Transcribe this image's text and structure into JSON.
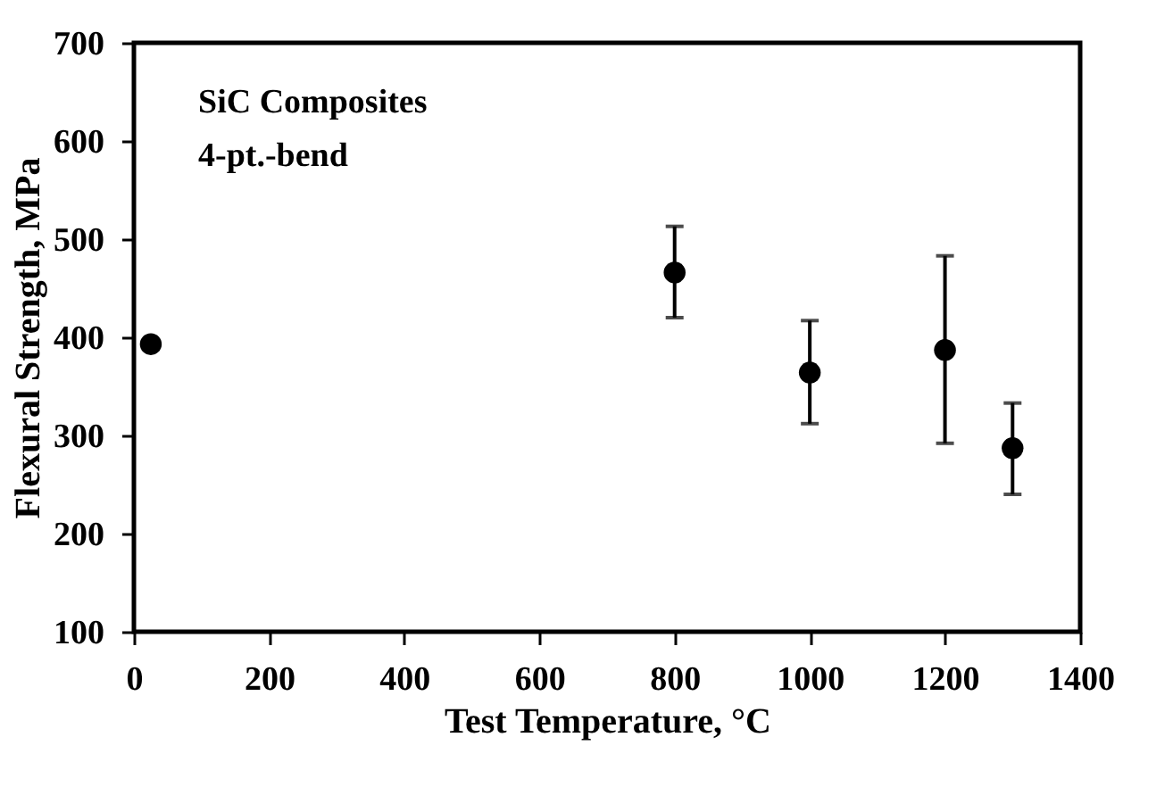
{
  "chart_data": {
    "type": "scatter",
    "xlabel": "Test Temperature, °C",
    "ylabel": "Flexural Strength, MPa",
    "annotations": [
      "SiC Composites",
      "4-pt.-bend"
    ],
    "x": [
      25,
      800,
      1000,
      1200,
      1300
    ],
    "series": [
      {
        "color": "#000000",
        "values": [
          393,
          466,
          364,
          387,
          287
        ],
        "errors": [
          null,
          [
            420,
            513
          ],
          [
            312,
            417
          ],
          [
            292,
            483
          ],
          [
            240,
            333
          ]
        ]
      }
    ],
    "marker": "circle",
    "grid": false,
    "xlim": [
      0,
      1400
    ],
    "ylim": [
      100,
      700
    ],
    "xticks": [
      0,
      200,
      400,
      600,
      800,
      1000,
      1200,
      1400
    ],
    "yticks": [
      100,
      200,
      300,
      400,
      500,
      600,
      700
    ]
  }
}
